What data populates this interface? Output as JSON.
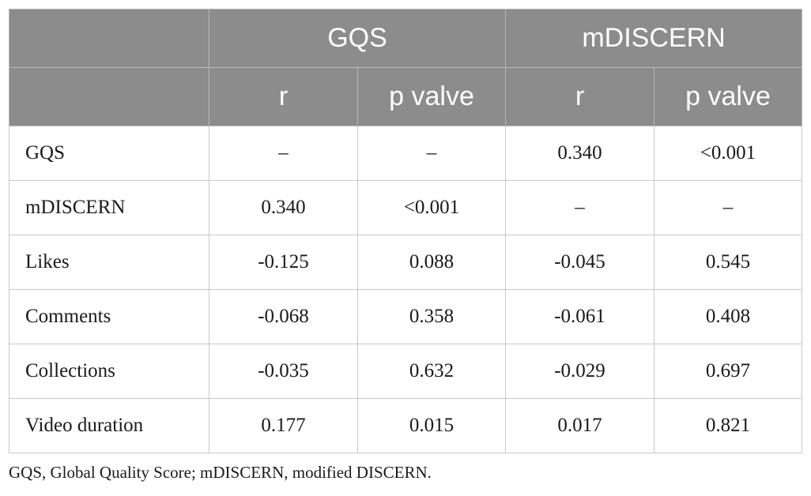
{
  "table": {
    "header": {
      "groups": [
        "GQS",
        "mDISCERN"
      ],
      "subcolumns": [
        "r",
        "p valve",
        "r",
        "p valve"
      ]
    },
    "rows": [
      {
        "label": "GQS",
        "values": [
          "–",
          "–",
          "0.340",
          "<0.001"
        ]
      },
      {
        "label": "mDISCERN",
        "values": [
          "0.340",
          "<0.001",
          "–",
          "–"
        ]
      },
      {
        "label": "Likes",
        "values": [
          "-0.125",
          "0.088",
          "-0.045",
          "0.545"
        ]
      },
      {
        "label": "Comments",
        "values": [
          "-0.068",
          "0.358",
          "-0.061",
          "0.408"
        ]
      },
      {
        "label": "Collections",
        "values": [
          "-0.035",
          "0.632",
          "-0.029",
          "0.697"
        ]
      },
      {
        "label": "Video duration",
        "values": [
          "0.177",
          "0.015",
          "0.017",
          "0.821"
        ]
      }
    ]
  },
  "footnote": "GQS, Global Quality Score; mDISCERN, modified DISCERN.",
  "colors": {
    "header_background": "#8c8c8c",
    "header_text": "#ffffff",
    "border": "#c8c8c8"
  }
}
